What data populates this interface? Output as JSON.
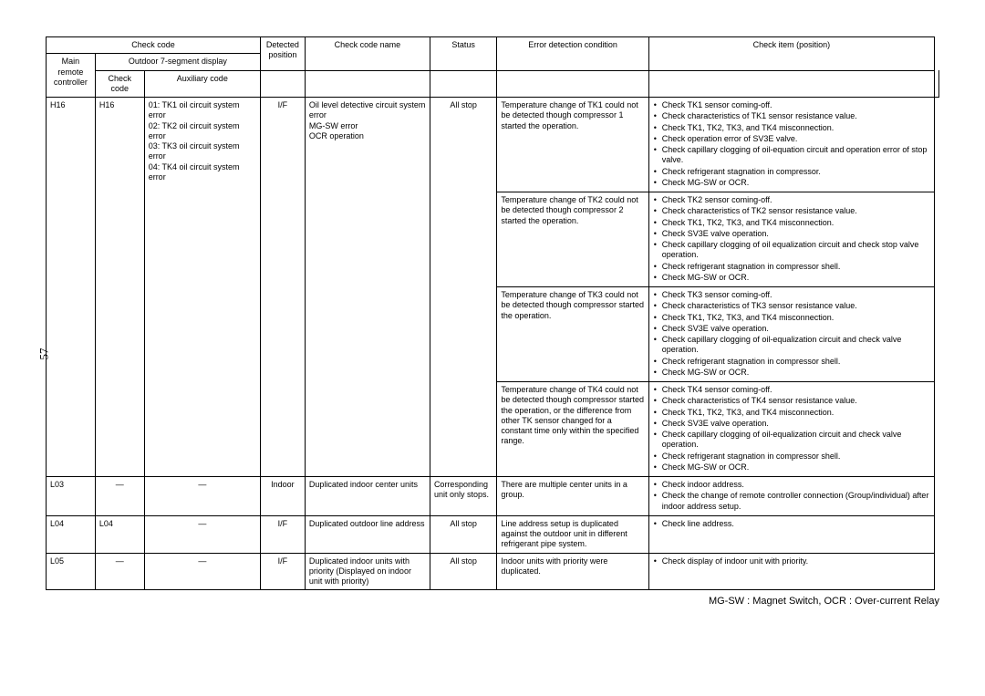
{
  "page_number": "57",
  "headers": {
    "check_code": "Check code",
    "main_remote": "Main remote controller",
    "outdoor7": "Outdoor 7-segment display",
    "check_code_sub": "Check code",
    "auxiliary": "Auxiliary code",
    "detected_pos": "Detected position",
    "check_code_name": "Check code name",
    "status": "Status",
    "error_cond": "Error detection condition",
    "check_item": "Check item (position)"
  },
  "rows": {
    "h16": {
      "main": "H16",
      "check": "H16",
      "aux": [
        "01: TK1 oil circuit system error",
        "02: TK2 oil circuit system error",
        "03: TK3 oil circuit system error",
        "04: TK4 oil circuit system error"
      ],
      "detpos": "I/F",
      "name": [
        "Oil level detective circuit system error",
        "MG-SW error",
        "OCR operation"
      ],
      "status": "All stop",
      "groups": [
        {
          "cond": "Temperature change of TK1 could not be detected though compressor 1 started the operation.",
          "items": [
            "Check TK1 sensor coming-off.",
            "Check characteristics of TK1 sensor resistance value.",
            "Check TK1, TK2, TK3, and TK4 misconnection.",
            "Check operation error of SV3E valve.",
            "Check capillary clogging of oil-equation circuit and operation error of stop valve.",
            "Check refrigerant stagnation in compressor.",
            "Check MG-SW or OCR."
          ]
        },
        {
          "cond": "Temperature change of TK2 could not be detected though compressor 2 started the operation.",
          "items": [
            "Check TK2 sensor coming-off.",
            "Check characteristics of TK2 sensor resistance value.",
            "Check TK1, TK2, TK3, and TK4 misconnection.",
            "Check SV3E valve operation.",
            "Check capillary clogging of oil equalization circuit and check stop valve operation.",
            "Check refrigerant stagnation in compressor shell.",
            "Check MG-SW or OCR."
          ]
        },
        {
          "cond": "Temperature change of TK3 could not be detected though compressor started the operation.",
          "items": [
            "Check TK3 sensor coming-off.",
            "Check characteristics of TK3 sensor resistance value.",
            "Check TK1, TK2, TK3, and TK4 misconnection.",
            "Check SV3E valve operation.",
            "Check capillary clogging of oil-equalization circuit and check valve operation.",
            "Check refrigerant stagnation in compressor shell.",
            "Check MG-SW or OCR."
          ]
        },
        {
          "cond": "Temperature change of TK4 could not be detected though compressor started the operation, or the difference from other TK sensor changed for a constant time only within the specified range.",
          "items": [
            "Check TK4 sensor coming-off.",
            "Check characteristics of TK4 sensor resistance value.",
            "Check TK1, TK2, TK3, and TK4 misconnection.",
            "Check SV3E valve operation.",
            "Check capillary clogging of oil-equalization circuit and check valve operation.",
            "Check refrigerant stagnation in compressor shell.",
            "Check MG-SW or OCR."
          ]
        }
      ]
    },
    "l03": {
      "main": "L03",
      "check": "—",
      "aux": "—",
      "detpos": "Indoor",
      "name": "Duplicated indoor center units",
      "status": "Corresponding unit only stops.",
      "cond": "There are multiple center units in a group.",
      "items": [
        "Check indoor address.",
        "Check the change of remote controller connection (Group/individual) after indoor address setup."
      ]
    },
    "l04": {
      "main": "L04",
      "check": "L04",
      "aux": "—",
      "detpos": "I/F",
      "name": "Duplicated outdoor line address",
      "status": "All stop",
      "cond": "Line address setup is duplicated against the outdoor unit in different refrigerant pipe system.",
      "items": [
        "Check line address."
      ]
    },
    "l05": {
      "main": "L05",
      "check": "—",
      "aux": "—",
      "detpos": "I/F",
      "name": "Duplicated indoor units with priority (Displayed on indoor unit with priority)",
      "status": "All stop",
      "cond": "Indoor units with priority were duplicated.",
      "items": [
        "Check display of indoor unit with priority."
      ]
    }
  },
  "footer": "MG-SW : Magnet Switch, OCR : Over-current Relay"
}
